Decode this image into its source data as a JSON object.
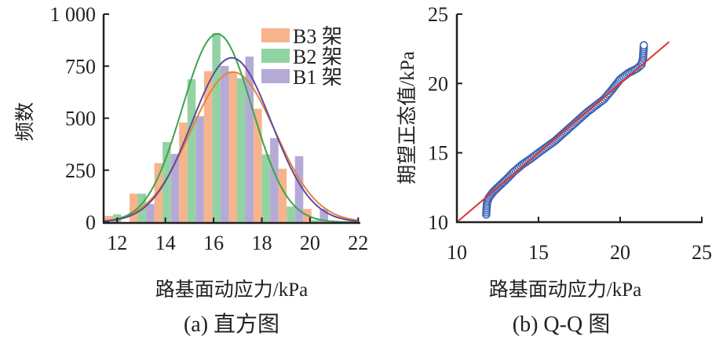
{
  "chart_data": [
    {
      "type": "bar",
      "title": "(a) 直方图",
      "xlabel": "路基面动应力/kPa",
      "ylabel": "频数",
      "xlim": [
        11.43,
        22
      ],
      "ylim": [
        0,
        1000
      ],
      "xticks": [
        "12",
        "14",
        "16",
        "18",
        "20",
        "22"
      ],
      "yticks": [
        "0",
        "250",
        "500",
        "750",
        "1 000"
      ],
      "legend_position": "top-right",
      "bin_start": 11.48,
      "bin_width": 1.03,
      "series": [
        {
          "name": "B3 架",
          "color": "#f7b48c",
          "curve_color": "#e8823a",
          "values": [
            30,
            137,
            284,
            479,
            726,
            720,
            545,
            257,
            64,
            0
          ],
          "fit": {
            "mean": 16.8,
            "peak": 722,
            "sd": 1.75
          }
        },
        {
          "name": "B2 架",
          "color": "#92d3a3",
          "curve_color": "#3fa34d",
          "values": [
            38,
            137,
            385,
            687,
            909,
            691,
            326,
            75,
            10,
            0
          ],
          "fit": {
            "mean": 16.15,
            "peak": 905,
            "sd": 1.45
          }
        },
        {
          "name": "B1 架",
          "color": "#b5aad6",
          "curve_color": "#5e4b9a",
          "values": [
            0,
            87,
            328,
            509,
            751,
            796,
            404,
            317,
            64,
            0
          ],
          "fit": {
            "mean": 16.75,
            "peak": 790,
            "sd": 1.65
          }
        }
      ]
    },
    {
      "type": "scatter",
      "title": "(b) Q-Q 图",
      "xlabel": "路基面动应力/kPa",
      "ylabel": "期望正态值/kPa",
      "xlim": [
        10,
        25
      ],
      "ylim": [
        10,
        25
      ],
      "xticks": [
        "10",
        "15",
        "20",
        "25"
      ],
      "yticks": [
        "10",
        "15",
        "20",
        "25"
      ],
      "point_color": "#3a62b3",
      "line_color": "#e0312f",
      "reference_line": [
        [
          10,
          10
        ],
        [
          23,
          23
        ]
      ],
      "points": [
        [
          11.8,
          10.55
        ],
        [
          11.82,
          11.0
        ],
        [
          11.85,
          11.4
        ],
        [
          11.95,
          11.75
        ],
        [
          12.2,
          12.15
        ],
        [
          12.5,
          12.5
        ],
        [
          13.0,
          13.05
        ],
        [
          13.5,
          13.65
        ],
        [
          14.0,
          14.15
        ],
        [
          14.5,
          14.55
        ],
        [
          15,
          15.0
        ],
        [
          16,
          15.85
        ],
        [
          17,
          16.9
        ],
        [
          18,
          17.95
        ],
        [
          19,
          18.85
        ],
        [
          19.5,
          19.55
        ],
        [
          20,
          20.3
        ],
        [
          20.5,
          20.75
        ],
        [
          21,
          21.05
        ],
        [
          21.3,
          21.35
        ],
        [
          21.4,
          21.8
        ],
        [
          21.42,
          22.2
        ],
        [
          21.45,
          22.75
        ]
      ]
    }
  ]
}
